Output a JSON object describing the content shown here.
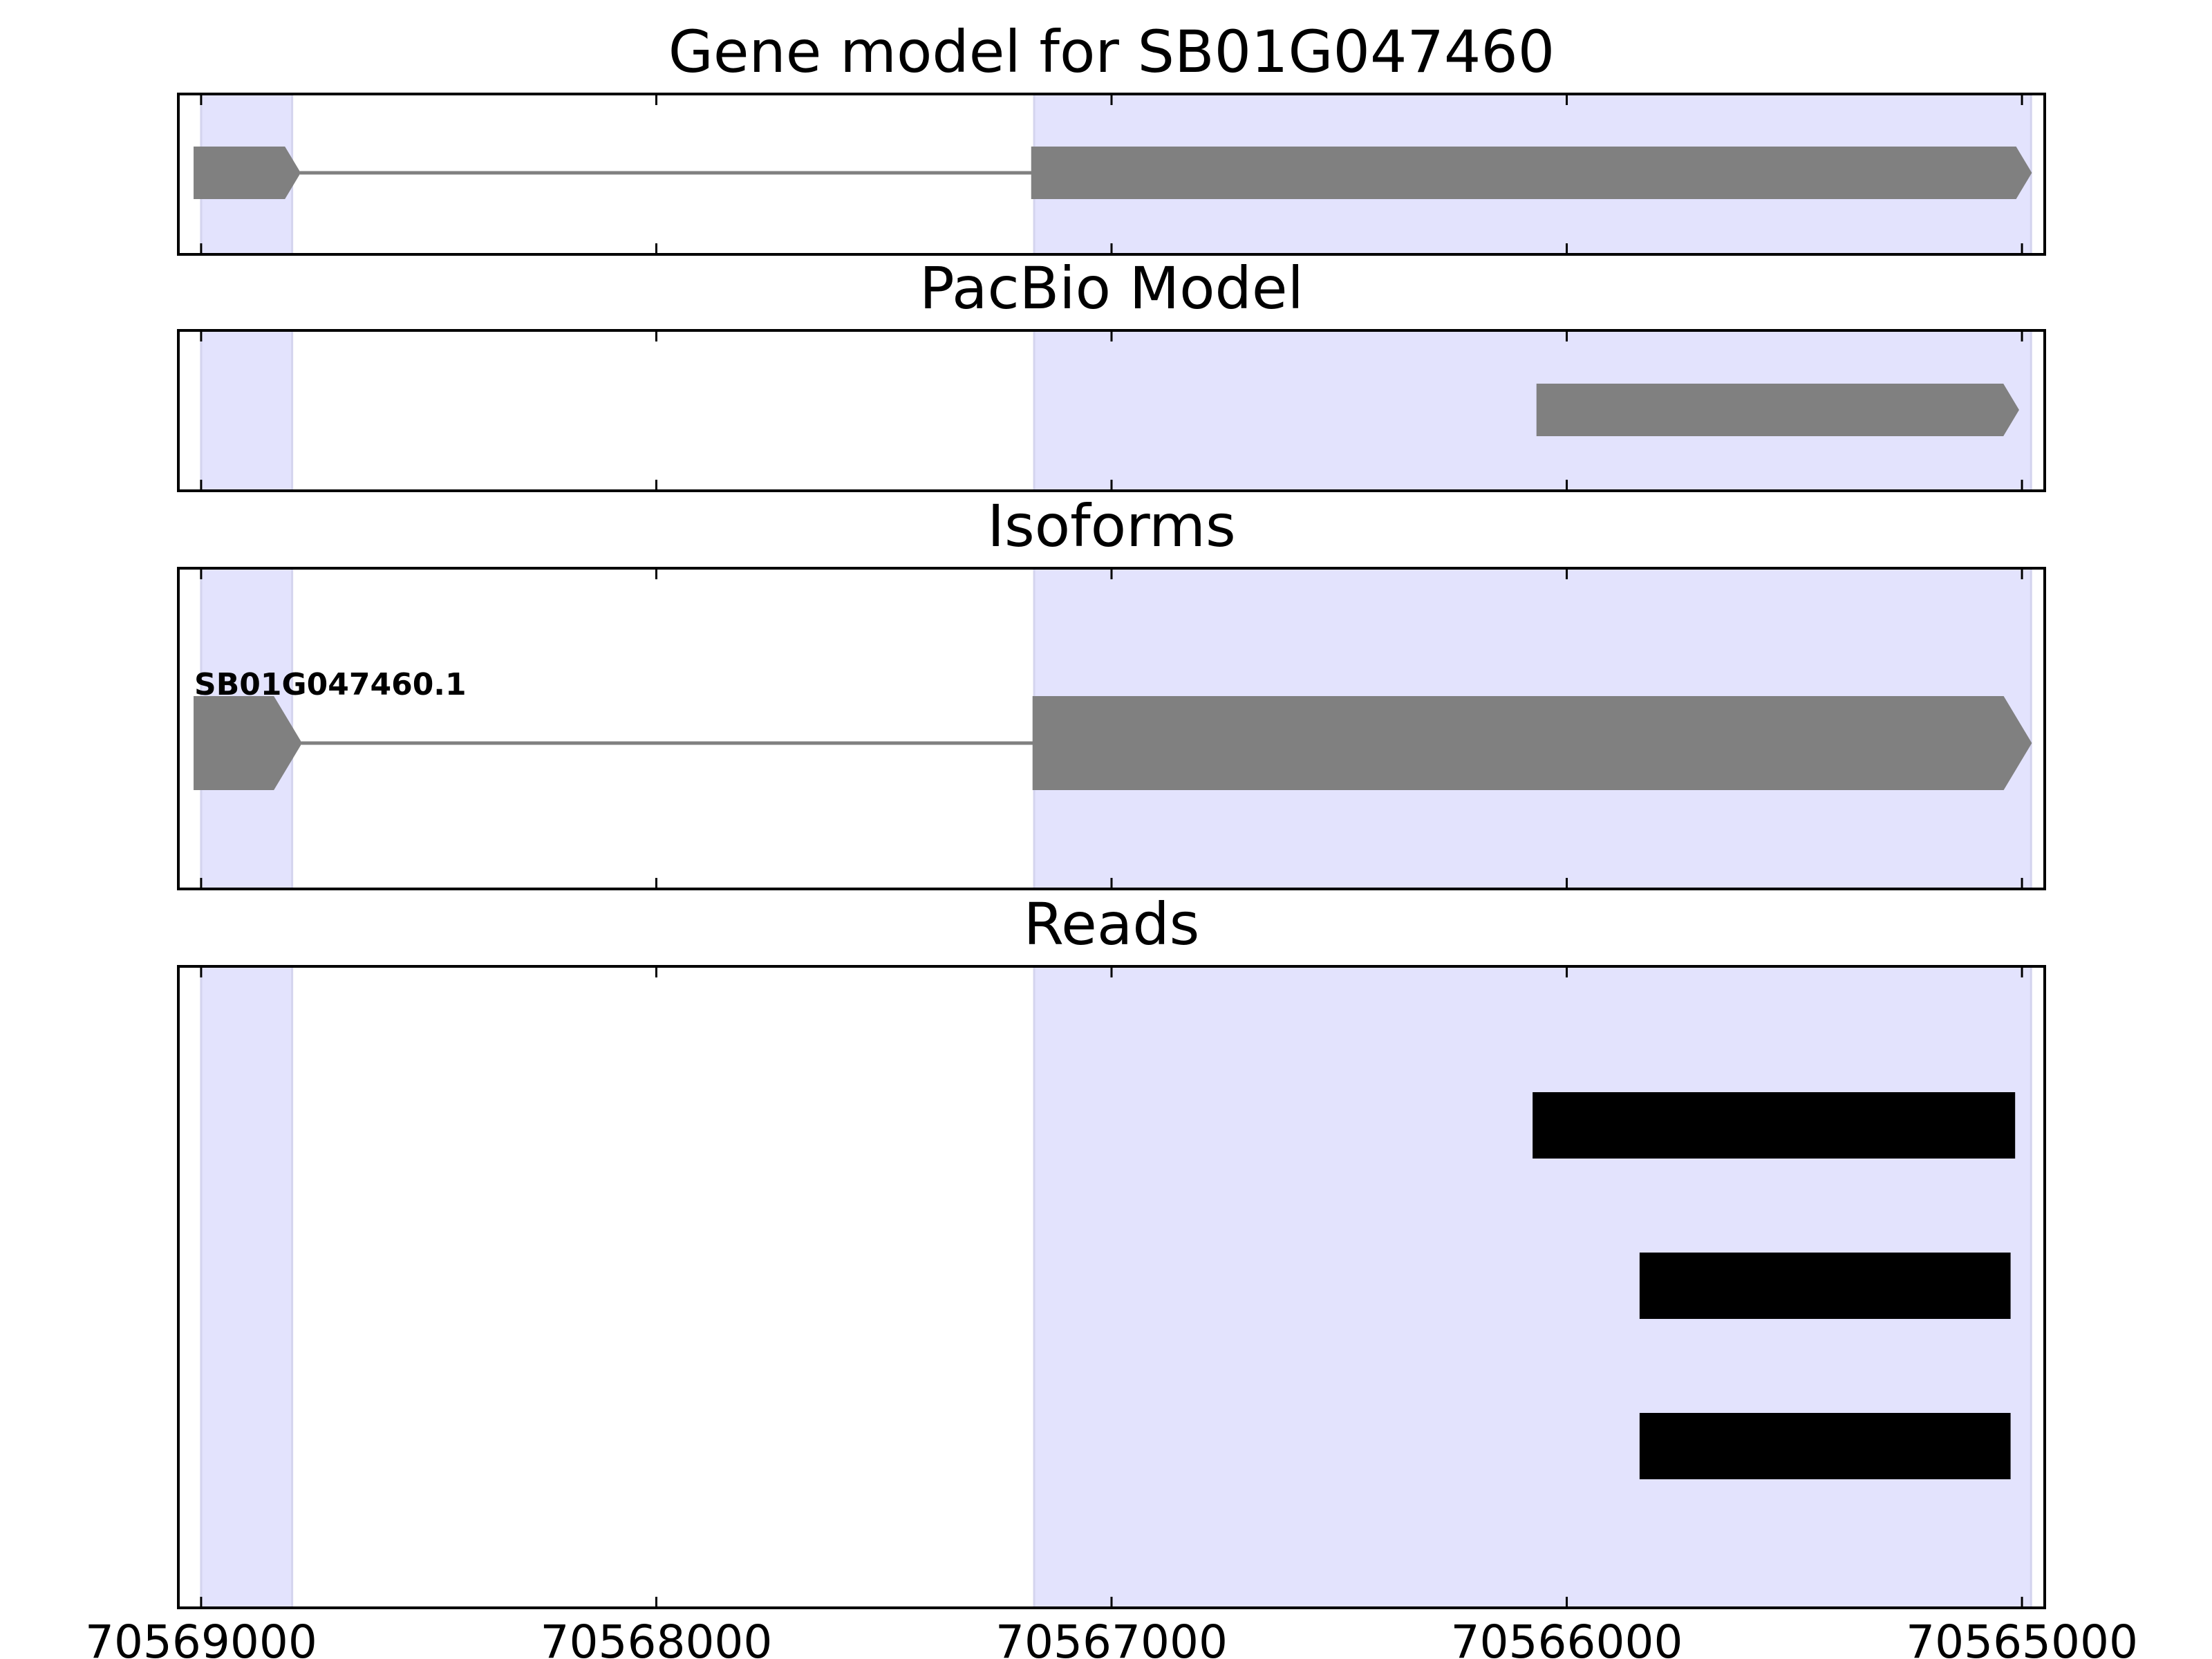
{
  "chart_data": {
    "type": "gene_model",
    "colors": {
      "exon_highlight": "#e3e3fd",
      "feature": "#808080",
      "read": "#000000",
      "frame": "#000000",
      "background": "#ffffff"
    },
    "x_axis": {
      "reversed": true,
      "xlim": [
        70569050,
        70564950
      ],
      "ticks": [
        70569000,
        70568000,
        70567000,
        70566000,
        70565000
      ],
      "tick_labels": [
        "70569000",
        "70568000",
        "70567000",
        "70566000",
        "70565000"
      ]
    },
    "exon_regions": [
      [
        70568800,
        70569000
      ],
      [
        70564980,
        70567170
      ]
    ],
    "panels": [
      {
        "id": "gene-model",
        "title": "Gene model for SB01G047460",
        "features": [
          {
            "kind": "exon",
            "start": 70568783,
            "end": 70569015,
            "strand": "-"
          },
          {
            "kind": "intron",
            "start": 70567175,
            "end": 70568783
          },
          {
            "kind": "exon",
            "start": 70564980,
            "end": 70567175,
            "strand": "-"
          }
        ]
      },
      {
        "id": "pacbio-model",
        "title": "PacBio Model",
        "features": [
          {
            "kind": "exon",
            "start": 70565008,
            "end": 70566065,
            "strand": "-"
          }
        ]
      },
      {
        "id": "isoforms",
        "title": "Isoforms",
        "isoform_label": "SB01G047460.1",
        "features": [
          {
            "kind": "exon",
            "start": 70568780,
            "end": 70569015,
            "strand": "-"
          },
          {
            "kind": "intron",
            "start": 70567172,
            "end": 70568780
          },
          {
            "kind": "exon",
            "start": 70564980,
            "end": 70567172,
            "strand": "-"
          }
        ]
      },
      {
        "id": "reads",
        "title": "Reads",
        "reads": [
          {
            "start": 70565015,
            "end": 70566075
          },
          {
            "start": 70565025,
            "end": 70565840
          },
          {
            "start": 70565025,
            "end": 70565840
          }
        ]
      }
    ]
  }
}
